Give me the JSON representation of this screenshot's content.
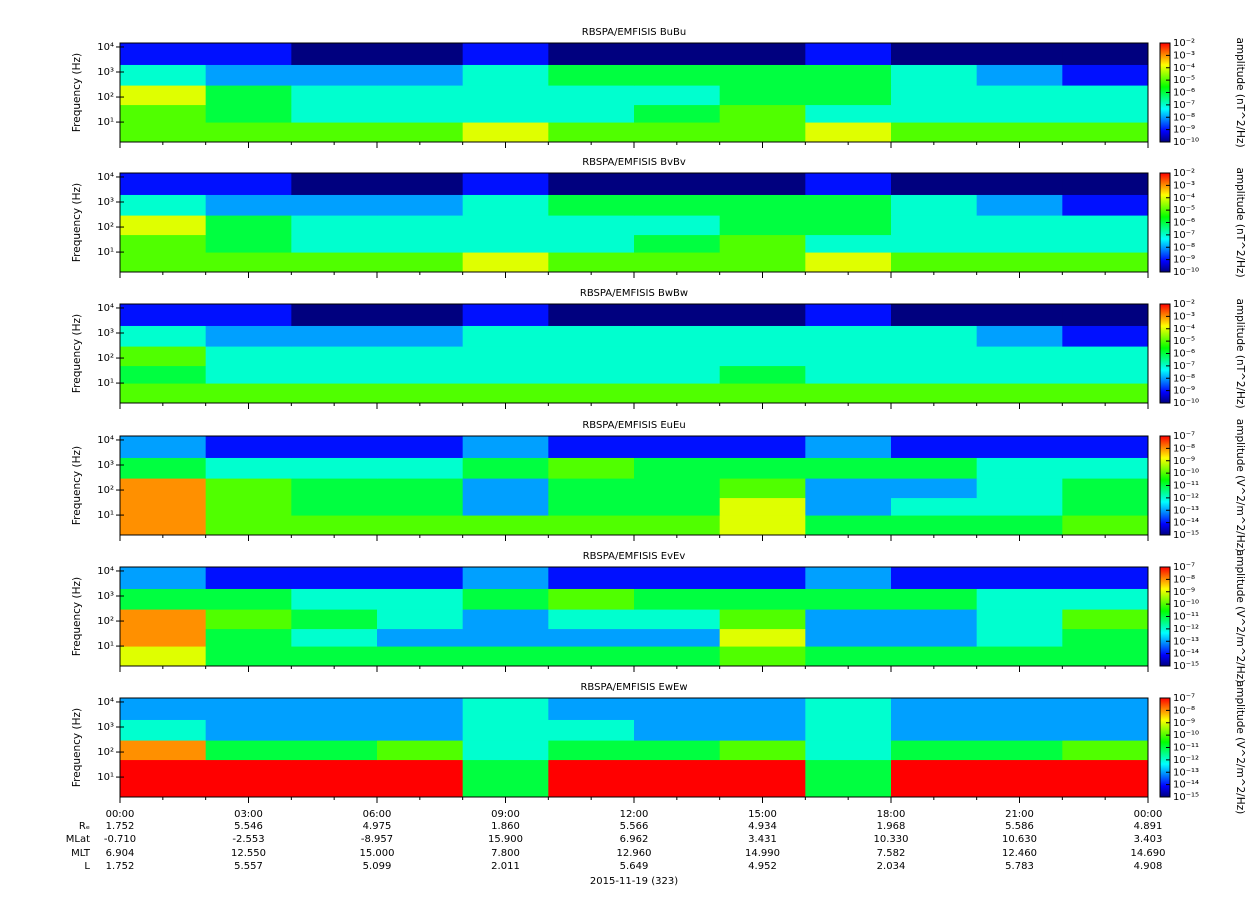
{
  "chart_data": [
    {
      "type": "heatmap",
      "title": "RBSPA/EMFISIS  BuBu",
      "ylabel": "Frequency (Hz)",
      "zlabel": "amplitude (nT^2/Hz)",
      "ylog": true,
      "ylim": [
        1.6,
        14400
      ],
      "yticks": [
        {
          "value": 10,
          "label": "10¹"
        },
        {
          "value": 100,
          "label": "10²"
        },
        {
          "value": 1000,
          "label": "10³"
        },
        {
          "value": 10000,
          "label": "10⁴"
        }
      ],
      "zlog": true,
      "zlim": [
        1e-10,
        0.01
      ],
      "zticks": [
        {
          "value": 0.01,
          "label": "10⁻²"
        },
        {
          "value": 0.001,
          "label": "10⁻³"
        },
        {
          "value": 0.0001,
          "label": "10⁻⁴"
        },
        {
          "value": 1e-05,
          "label": "10⁻⁵"
        },
        {
          "value": 1e-06,
          "label": "10⁻⁶"
        },
        {
          "value": 1e-07,
          "label": "10⁻⁷"
        },
        {
          "value": 1e-08,
          "label": "10⁻⁸"
        },
        {
          "value": 1e-09,
          "label": "10⁻⁹"
        },
        {
          "value": 1e-10,
          "label": "10⁻¹⁰"
        }
      ],
      "xbins": [
        0,
        2,
        4,
        6,
        8,
        10,
        12,
        14,
        16,
        18,
        20,
        22,
        24
      ],
      "ybins": [
        1.6,
        10,
        50,
        300,
        2000,
        14400
      ],
      "values": [
        [
          1e-05,
          1e-05,
          1e-05,
          1e-05,
          0.0001,
          1e-05,
          1e-05,
          1e-05,
          0.0001,
          1e-05,
          1e-05,
          1e-05
        ],
        [
          1e-05,
          1e-06,
          1e-07,
          1e-07,
          1e-07,
          1e-07,
          1e-06,
          1e-05,
          1e-07,
          1e-07,
          1e-07,
          1e-07
        ],
        [
          0.0001,
          1e-06,
          1e-07,
          1e-07,
          1e-07,
          1e-07,
          1e-07,
          1e-06,
          1e-06,
          1e-07,
          1e-07,
          1e-07
        ],
        [
          1e-07,
          1e-08,
          1e-08,
          1e-08,
          1e-07,
          1e-06,
          1e-06,
          1e-06,
          1e-06,
          1e-07,
          1e-08,
          1e-09
        ],
        [
          1e-09,
          1e-09,
          1e-10,
          1e-10,
          1e-09,
          1e-10,
          1e-10,
          1e-10,
          1e-09,
          1e-10,
          1e-10,
          1e-10
        ]
      ]
    },
    {
      "type": "heatmap",
      "title": "RBSPA/EMFISIS  BvBv",
      "ylabel": "Frequency (Hz)",
      "zlabel": "amplitude (nT^2/Hz)",
      "ylog": true,
      "ylim": [
        1.6,
        14400
      ],
      "yticks": [
        {
          "value": 10,
          "label": "10¹"
        },
        {
          "value": 100,
          "label": "10²"
        },
        {
          "value": 1000,
          "label": "10³"
        },
        {
          "value": 10000,
          "label": "10⁴"
        }
      ],
      "zlog": true,
      "zlim": [
        1e-10,
        0.01
      ],
      "zticks": [
        {
          "value": 0.01,
          "label": "10⁻²"
        },
        {
          "value": 0.001,
          "label": "10⁻³"
        },
        {
          "value": 0.0001,
          "label": "10⁻⁴"
        },
        {
          "value": 1e-05,
          "label": "10⁻⁵"
        },
        {
          "value": 1e-06,
          "label": "10⁻⁶"
        },
        {
          "value": 1e-07,
          "label": "10⁻⁷"
        },
        {
          "value": 1e-08,
          "label": "10⁻⁸"
        },
        {
          "value": 1e-09,
          "label": "10⁻⁹"
        },
        {
          "value": 1e-10,
          "label": "10⁻¹⁰"
        }
      ],
      "xbins": [
        0,
        2,
        4,
        6,
        8,
        10,
        12,
        14,
        16,
        18,
        20,
        22,
        24
      ],
      "ybins": [
        1.6,
        10,
        50,
        300,
        2000,
        14400
      ],
      "values": [
        [
          1e-05,
          1e-05,
          1e-05,
          1e-05,
          0.0001,
          1e-05,
          1e-05,
          1e-05,
          0.0001,
          1e-05,
          1e-05,
          1e-05
        ],
        [
          1e-05,
          1e-06,
          1e-07,
          1e-07,
          1e-07,
          1e-07,
          1e-06,
          1e-05,
          1e-07,
          1e-07,
          1e-07,
          1e-07
        ],
        [
          0.0001,
          1e-06,
          1e-07,
          1e-07,
          1e-07,
          1e-07,
          1e-07,
          1e-06,
          1e-06,
          1e-07,
          1e-07,
          1e-07
        ],
        [
          1e-07,
          1e-08,
          1e-08,
          1e-08,
          1e-07,
          1e-06,
          1e-06,
          1e-06,
          1e-06,
          1e-07,
          1e-08,
          1e-09
        ],
        [
          1e-09,
          1e-09,
          1e-10,
          1e-10,
          1e-09,
          1e-10,
          1e-10,
          1e-10,
          1e-09,
          1e-10,
          1e-10,
          1e-10
        ]
      ]
    },
    {
      "type": "heatmap",
      "title": "RBSPA/EMFISIS  BwBw",
      "ylabel": "Frequency (Hz)",
      "zlabel": "amplitude (nT^2/Hz)",
      "ylog": true,
      "ylim": [
        1.6,
        14400
      ],
      "yticks": [
        {
          "value": 10,
          "label": "10¹"
        },
        {
          "value": 100,
          "label": "10²"
        },
        {
          "value": 1000,
          "label": "10³"
        },
        {
          "value": 10000,
          "label": "10⁴"
        }
      ],
      "zlog": true,
      "zlim": [
        1e-10,
        0.01
      ],
      "zticks": [
        {
          "value": 0.01,
          "label": "10⁻²"
        },
        {
          "value": 0.001,
          "label": "10⁻³"
        },
        {
          "value": 0.0001,
          "label": "10⁻⁴"
        },
        {
          "value": 1e-05,
          "label": "10⁻⁵"
        },
        {
          "value": 1e-06,
          "label": "10⁻⁶"
        },
        {
          "value": 1e-07,
          "label": "10⁻⁷"
        },
        {
          "value": 1e-08,
          "label": "10⁻⁸"
        },
        {
          "value": 1e-09,
          "label": "10⁻⁹"
        },
        {
          "value": 1e-10,
          "label": "10⁻¹⁰"
        }
      ],
      "xbins": [
        0,
        2,
        4,
        6,
        8,
        10,
        12,
        14,
        16,
        18,
        20,
        22,
        24
      ],
      "ybins": [
        1.6,
        10,
        50,
        300,
        2000,
        14400
      ],
      "values": [
        [
          1e-05,
          1e-05,
          1e-05,
          1e-05,
          1e-05,
          1e-05,
          1e-05,
          1e-05,
          1e-05,
          1e-05,
          1e-05,
          1e-05
        ],
        [
          1e-06,
          1e-07,
          1e-07,
          1e-07,
          1e-07,
          1e-07,
          1e-07,
          1e-06,
          1e-07,
          1e-07,
          1e-07,
          1e-07
        ],
        [
          1e-05,
          1e-07,
          1e-07,
          1e-07,
          1e-07,
          1e-07,
          1e-07,
          1e-07,
          1e-07,
          1e-07,
          1e-07,
          1e-07
        ],
        [
          1e-07,
          1e-08,
          1e-08,
          1e-08,
          1e-07,
          1e-07,
          1e-07,
          1e-07,
          1e-07,
          1e-07,
          1e-08,
          1e-09
        ],
        [
          1e-09,
          1e-09,
          1e-10,
          1e-10,
          1e-09,
          1e-10,
          1e-10,
          1e-10,
          1e-09,
          1e-10,
          1e-10,
          1e-10
        ]
      ]
    },
    {
      "type": "heatmap",
      "title": "RBSPA/EMFISIS  EuEu",
      "ylabel": "Frequency (Hz)",
      "zlabel": "amplitude (V^2/m^2/Hz)",
      "ylog": true,
      "ylim": [
        1.6,
        14400
      ],
      "yticks": [
        {
          "value": 10,
          "label": "10¹"
        },
        {
          "value": 100,
          "label": "10²"
        },
        {
          "value": 1000,
          "label": "10³"
        },
        {
          "value": 10000,
          "label": "10⁴"
        }
      ],
      "zlog": true,
      "zlim": [
        1e-15,
        1e-07
      ],
      "zticks": [
        {
          "value": 1e-07,
          "label": "10⁻⁷"
        },
        {
          "value": 1e-08,
          "label": "10⁻⁸"
        },
        {
          "value": 1e-09,
          "label": "10⁻⁹"
        },
        {
          "value": 1e-10,
          "label": "10⁻¹⁰"
        },
        {
          "value": 1e-11,
          "label": "10⁻¹¹"
        },
        {
          "value": 1e-12,
          "label": "10⁻¹²"
        },
        {
          "value": 1e-13,
          "label": "10⁻¹³"
        },
        {
          "value": 1e-14,
          "label": "10⁻¹⁴"
        },
        {
          "value": 1e-15,
          "label": "10⁻¹⁵"
        }
      ],
      "xbins": [
        0,
        2,
        4,
        6,
        8,
        10,
        12,
        14,
        16,
        18,
        20,
        22,
        24
      ],
      "ybins": [
        1.6,
        10,
        50,
        300,
        2000,
        14400
      ],
      "values": [
        [
          1e-08,
          1e-10,
          1e-10,
          1e-10,
          1e-10,
          1e-10,
          1e-10,
          1e-09,
          1e-11,
          1e-11,
          1e-11,
          1e-10
        ],
        [
          1e-08,
          1e-10,
          1e-11,
          1e-11,
          1e-13,
          1e-11,
          1e-11,
          1e-09,
          1e-13,
          1e-12,
          1e-12,
          1e-11
        ],
        [
          1e-08,
          1e-10,
          1e-11,
          1e-11,
          1e-13,
          1e-11,
          1e-11,
          1e-10,
          1e-13,
          1e-13,
          1e-12,
          1e-11
        ],
        [
          1e-11,
          1e-12,
          1e-12,
          1e-12,
          1e-11,
          1e-10,
          1e-11,
          1e-11,
          1e-11,
          1e-11,
          1e-12,
          1e-12
        ],
        [
          1e-13,
          1e-14,
          1e-14,
          1e-14,
          1e-13,
          1e-14,
          1e-14,
          1e-14,
          1e-13,
          1e-14,
          1e-14,
          1e-14
        ]
      ]
    },
    {
      "type": "heatmap",
      "title": "RBSPA/EMFISIS  EvEv",
      "ylabel": "Frequency (Hz)",
      "zlabel": "amplitude (V^2/m^2/Hz)",
      "ylog": true,
      "ylim": [
        1.6,
        14400
      ],
      "yticks": [
        {
          "value": 10,
          "label": "10¹"
        },
        {
          "value": 100,
          "label": "10²"
        },
        {
          "value": 1000,
          "label": "10³"
        },
        {
          "value": 10000,
          "label": "10⁴"
        }
      ],
      "zlog": true,
      "zlim": [
        1e-15,
        1e-07
      ],
      "zticks": [
        {
          "value": 1e-07,
          "label": "10⁻⁷"
        },
        {
          "value": 1e-08,
          "label": "10⁻⁸"
        },
        {
          "value": 1e-09,
          "label": "10⁻⁹"
        },
        {
          "value": 1e-10,
          "label": "10⁻¹⁰"
        },
        {
          "value": 1e-11,
          "label": "10⁻¹¹"
        },
        {
          "value": 1e-12,
          "label": "10⁻¹²"
        },
        {
          "value": 1e-13,
          "label": "10⁻¹³"
        },
        {
          "value": 1e-14,
          "label": "10⁻¹⁴"
        },
        {
          "value": 1e-15,
          "label": "10⁻¹⁵"
        }
      ],
      "xbins": [
        0,
        2,
        4,
        6,
        8,
        10,
        12,
        14,
        16,
        18,
        20,
        22,
        24
      ],
      "ybins": [
        1.6,
        10,
        50,
        300,
        2000,
        14400
      ],
      "values": [
        [
          1e-09,
          1e-11,
          1e-11,
          1e-11,
          1e-11,
          1e-11,
          1e-11,
          1e-10,
          1e-11,
          1e-11,
          1e-11,
          1e-11
        ],
        [
          1e-08,
          1e-11,
          1e-12,
          1e-13,
          1e-13,
          1e-13,
          1e-13,
          1e-09,
          1e-13,
          1e-13,
          1e-12,
          1e-11
        ],
        [
          1e-08,
          1e-10,
          1e-11,
          1e-12,
          1e-13,
          1e-12,
          1e-12,
          1e-10,
          1e-13,
          1e-13,
          1e-12,
          1e-10
        ],
        [
          1e-11,
          1e-11,
          1e-12,
          1e-12,
          1e-11,
          1e-10,
          1e-11,
          1e-11,
          1e-11,
          1e-11,
          1e-12,
          1e-12
        ],
        [
          1e-13,
          1e-14,
          1e-14,
          1e-14,
          1e-13,
          1e-14,
          1e-14,
          1e-14,
          1e-13,
          1e-14,
          1e-14,
          1e-14
        ]
      ]
    },
    {
      "type": "heatmap",
      "title": "RBSPA/EMFISIS  EwEw",
      "ylabel": "Frequency (Hz)",
      "zlabel": "amplitude (V^2/m^2/Hz)",
      "ylog": true,
      "ylim": [
        1.6,
        14400
      ],
      "yticks": [
        {
          "value": 10,
          "label": "10¹"
        },
        {
          "value": 100,
          "label": "10²"
        },
        {
          "value": 1000,
          "label": "10³"
        },
        {
          "value": 10000,
          "label": "10⁴"
        }
      ],
      "zlog": true,
      "zlim": [
        1e-15,
        1e-07
      ],
      "zticks": [
        {
          "value": 1e-07,
          "label": "10⁻⁷"
        },
        {
          "value": 1e-08,
          "label": "10⁻⁸"
        },
        {
          "value": 1e-09,
          "label": "10⁻⁹"
        },
        {
          "value": 1e-10,
          "label": "10⁻¹⁰"
        },
        {
          "value": 1e-11,
          "label": "10⁻¹¹"
        },
        {
          "value": 1e-12,
          "label": "10⁻¹²"
        },
        {
          "value": 1e-13,
          "label": "10⁻¹³"
        },
        {
          "value": 1e-14,
          "label": "10⁻¹⁴"
        },
        {
          "value": 1e-15,
          "label": "10⁻¹⁵"
        }
      ],
      "xbins": [
        0,
        2,
        4,
        6,
        8,
        10,
        12,
        14,
        16,
        18,
        20,
        22,
        24
      ],
      "ybins": [
        1.6,
        10,
        50,
        300,
        2000,
        14400
      ],
      "values": [
        [
          1e-07,
          1e-07,
          1e-07,
          1e-07,
          1e-11,
          1e-07,
          1e-07,
          1e-07,
          1e-11,
          1e-07,
          1e-07,
          1e-07
        ],
        [
          1e-07,
          1e-07,
          1e-07,
          1e-07,
          1e-11,
          1e-07,
          1e-07,
          1e-07,
          1e-11,
          1e-07,
          1e-07,
          1e-07
        ],
        [
          1e-08,
          1e-11,
          1e-11,
          1e-10,
          1e-12,
          1e-11,
          1e-11,
          1e-10,
          1e-12,
          1e-11,
          1e-11,
          1e-10
        ],
        [
          1e-12,
          1e-13,
          1e-13,
          1e-13,
          1e-12,
          1e-12,
          1e-13,
          1e-13,
          1e-12,
          1e-13,
          1e-13,
          1e-13
        ],
        [
          1e-13,
          1e-13,
          1e-13,
          1e-13,
          1e-12,
          1e-13,
          1e-13,
          1e-13,
          1e-12,
          1e-13,
          1e-13,
          1e-13
        ]
      ]
    }
  ],
  "colormap": [
    "#00007f",
    "#0000ff",
    "#0080ff",
    "#00ffff",
    "#00ff80",
    "#00ff00",
    "#80ff00",
    "#ffff00",
    "#ff8000",
    "#ff0000"
  ],
  "time_axis": {
    "xlim": [
      0,
      24
    ],
    "xticks": [
      {
        "value": 0,
        "label": "00:00"
      },
      {
        "value": 3,
        "label": "03:00"
      },
      {
        "value": 6,
        "label": "06:00"
      },
      {
        "value": 9,
        "label": "09:00"
      },
      {
        "value": 12,
        "label": "12:00"
      },
      {
        "value": 15,
        "label": "15:00"
      },
      {
        "value": 18,
        "label": "18:00"
      },
      {
        "value": 21,
        "label": "21:00"
      },
      {
        "value": 24,
        "label": "00:00"
      }
    ],
    "xminorticks": [
      1,
      2,
      4,
      5,
      7,
      8,
      10,
      11,
      13,
      14,
      16,
      17,
      19,
      20,
      22,
      23
    ]
  },
  "ephemeris": {
    "rows": [
      {
        "label": "Rₑ",
        "values": [
          "1.752",
          "5.546",
          "4.975",
          "1.860",
          "5.566",
          "4.934",
          "1.968",
          "5.586",
          "4.891"
        ]
      },
      {
        "label": "MLat",
        "values": [
          "-0.710",
          "-2.553",
          "-8.957",
          "15.900",
          "6.962",
          "3.431",
          "10.330",
          "10.630",
          "3.403"
        ]
      },
      {
        "label": "MLT",
        "values": [
          "6.904",
          "12.550",
          "15.000",
          "7.800",
          "12.960",
          "14.990",
          "7.582",
          "12.460",
          "14.690"
        ]
      },
      {
        "label": "L",
        "values": [
          "1.752",
          "5.557",
          "5.099",
          "2.011",
          "5.649",
          "4.952",
          "2.034",
          "5.783",
          "4.908"
        ]
      }
    ],
    "date": "2015-11-19 (323)"
  }
}
